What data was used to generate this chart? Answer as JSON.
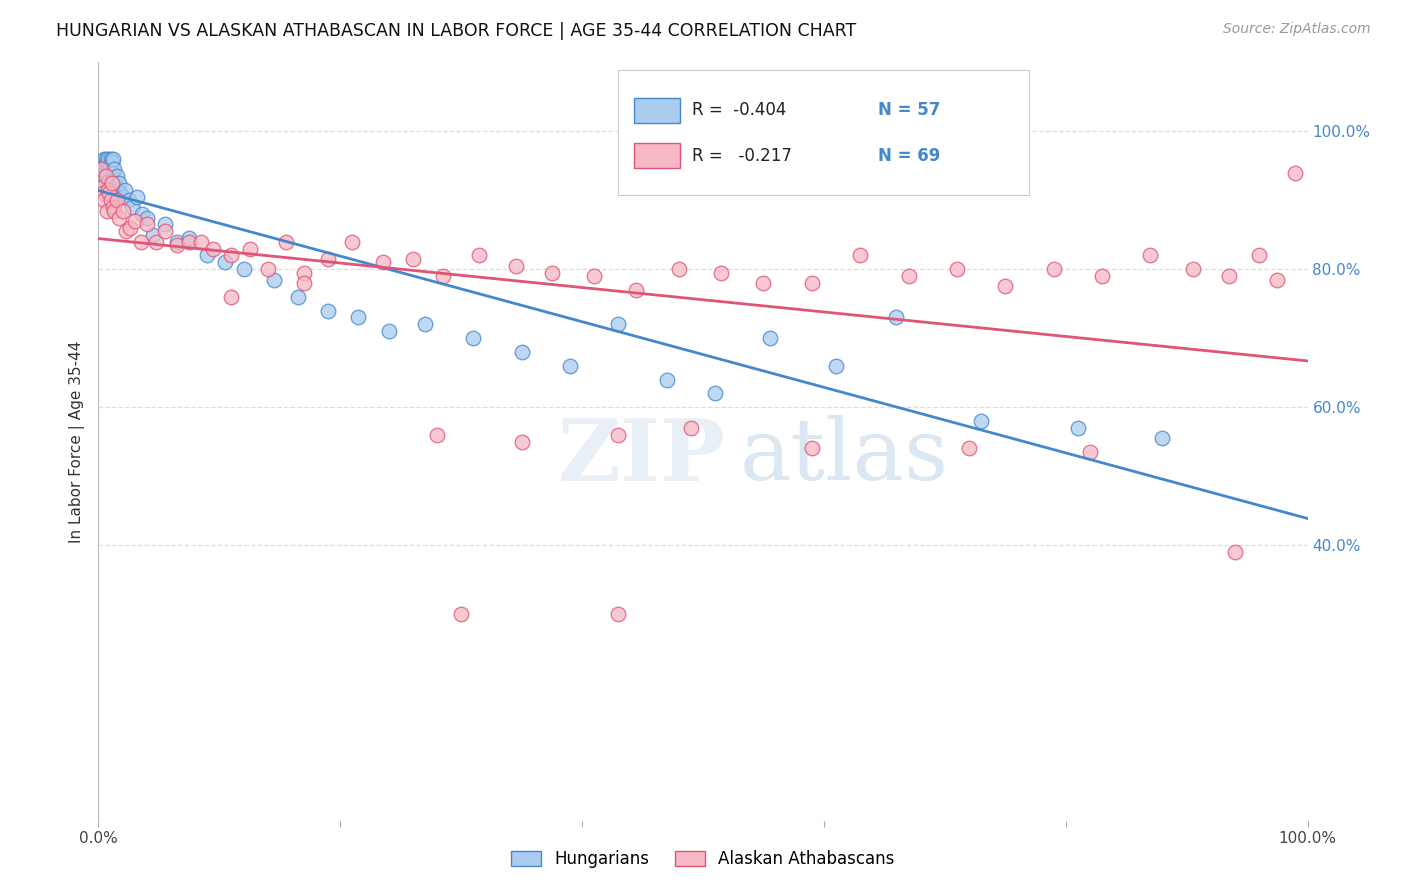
{
  "title": "HUNGARIAN VS ALASKAN ATHABASCAN IN LABOR FORCE | AGE 35-44 CORRELATION CHART",
  "source": "Source: ZipAtlas.com",
  "ylabel": "In Labor Force | Age 35-44",
  "background_color": "#ffffff",
  "grid_color": "#dddddd",
  "blue_color": "#aaccee",
  "pink_color": "#f5b8c4",
  "blue_line_color": "#4488cc",
  "pink_line_color": "#e05575",
  "legend_R_blue": "-0.404",
  "legend_N_blue": "57",
  "legend_R_pink": "-0.217",
  "legend_N_pink": "69",
  "watermark_zip": "ZIP",
  "watermark_atlas": "atlas",
  "legend_label_blue": "Hungarians",
  "legend_label_pink": "Alaskan Athabascans",
  "blue_x": [
    0.002,
    0.003,
    0.004,
    0.005,
    0.005,
    0.006,
    0.006,
    0.007,
    0.007,
    0.008,
    0.008,
    0.009,
    0.009,
    0.01,
    0.01,
    0.011,
    0.011,
    0.012,
    0.012,
    0.013,
    0.014,
    0.015,
    0.016,
    0.017,
    0.018,
    0.02,
    0.022,
    0.025,
    0.028,
    0.032,
    0.036,
    0.04,
    0.045,
    0.055,
    0.065,
    0.075,
    0.09,
    0.105,
    0.12,
    0.145,
    0.165,
    0.19,
    0.215,
    0.24,
    0.27,
    0.31,
    0.35,
    0.39,
    0.43,
    0.47,
    0.51,
    0.555,
    0.61,
    0.66,
    0.73,
    0.81,
    0.88
  ],
  "blue_y": [
    0.93,
    0.92,
    0.935,
    0.95,
    0.96,
    0.945,
    0.96,
    0.94,
    0.955,
    0.95,
    0.96,
    0.93,
    0.945,
    0.96,
    0.925,
    0.955,
    0.94,
    0.96,
    0.93,
    0.945,
    0.92,
    0.935,
    0.915,
    0.925,
    0.91,
    0.905,
    0.915,
    0.9,
    0.89,
    0.905,
    0.88,
    0.875,
    0.85,
    0.865,
    0.84,
    0.845,
    0.82,
    0.81,
    0.8,
    0.785,
    0.76,
    0.74,
    0.73,
    0.71,
    0.72,
    0.7,
    0.68,
    0.66,
    0.72,
    0.64,
    0.62,
    0.7,
    0.66,
    0.73,
    0.58,
    0.57,
    0.555
  ],
  "pink_x": [
    0.002,
    0.003,
    0.004,
    0.005,
    0.006,
    0.007,
    0.008,
    0.009,
    0.01,
    0.011,
    0.012,
    0.013,
    0.015,
    0.017,
    0.02,
    0.023,
    0.026,
    0.03,
    0.035,
    0.04,
    0.048,
    0.055,
    0.065,
    0.075,
    0.085,
    0.095,
    0.11,
    0.125,
    0.14,
    0.155,
    0.17,
    0.19,
    0.21,
    0.235,
    0.26,
    0.285,
    0.315,
    0.345,
    0.375,
    0.41,
    0.445,
    0.48,
    0.515,
    0.55,
    0.59,
    0.63,
    0.67,
    0.71,
    0.75,
    0.79,
    0.83,
    0.87,
    0.905,
    0.935,
    0.96,
    0.975,
    0.99,
    0.43,
    0.49,
    0.11,
    0.17,
    0.28,
    0.35,
    0.59,
    0.72,
    0.82,
    0.94,
    0.3,
    0.43
  ],
  "pink_y": [
    0.945,
    0.92,
    0.91,
    0.9,
    0.935,
    0.885,
    0.915,
    0.91,
    0.9,
    0.925,
    0.89,
    0.885,
    0.9,
    0.875,
    0.885,
    0.855,
    0.86,
    0.87,
    0.84,
    0.865,
    0.84,
    0.855,
    0.835,
    0.84,
    0.84,
    0.83,
    0.82,
    0.83,
    0.8,
    0.84,
    0.795,
    0.815,
    0.84,
    0.81,
    0.815,
    0.79,
    0.82,
    0.805,
    0.795,
    0.79,
    0.77,
    0.8,
    0.795,
    0.78,
    0.78,
    0.82,
    0.79,
    0.8,
    0.775,
    0.8,
    0.79,
    0.82,
    0.8,
    0.79,
    0.82,
    0.785,
    0.94,
    0.56,
    0.57,
    0.76,
    0.78,
    0.56,
    0.55,
    0.54,
    0.54,
    0.535,
    0.39,
    0.3,
    0.3
  ]
}
